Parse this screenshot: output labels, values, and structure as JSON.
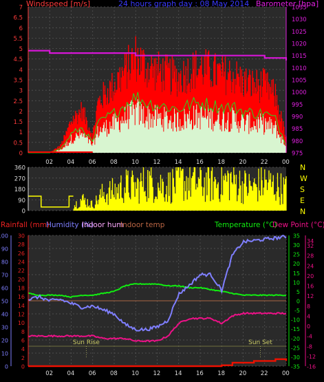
{
  "title": "24 hours graph day : 08 May 2014",
  "colors": {
    "background": "#000000",
    "grid": "#5a5a5a",
    "wind_avg": "#ff2a1a",
    "wind_gust": "#ff0000",
    "wind_avg_fill": "#d8f5d0",
    "wind_line": "#22dd22",
    "barometer": "#d815d8",
    "direction": "#ffff00",
    "humidity": "#7f7fff",
    "temperature": "#11ee11",
    "dewpoint": "#ee1188",
    "rain": "#ee1100",
    "indoor_hum": "#ffaaff",
    "indoor_temp": "#aa6644",
    "sun": "#888844"
  },
  "chart_data": [
    {
      "type": "line",
      "panel": "wind-barometer",
      "title": "24 hours graph day : 08 May 2014",
      "left_axis": {
        "label": "Windspeed [m/s]",
        "ylim": [
          0,
          7
        ],
        "ticks": [
          "0",
          "0.5",
          "1",
          "1.5",
          "2",
          "2.5",
          "3",
          "3.5",
          "4",
          "4.5",
          "5",
          "5.5",
          "6",
          "6.5",
          "7"
        ]
      },
      "right_axis": {
        "label": "Barometer [hpa]",
        "ylim": [
          975,
          1035
        ],
        "ticks": [
          "975",
          "980",
          "985",
          "990",
          "995",
          "1000",
          "1005",
          "1010",
          "1015",
          "1020",
          "1025",
          "1030",
          "1035"
        ]
      },
      "x_ticks": [
        "02",
        "04",
        "06",
        "08",
        "10",
        "12",
        "14",
        "16",
        "18",
        "20",
        "22",
        "00"
      ],
      "series": [
        {
          "name": "Windspeed [m/s]",
          "x": [
            0,
            1,
            2,
            3,
            3.5,
            4,
            5,
            6,
            6.5,
            7,
            8,
            9,
            10,
            11,
            12,
            13,
            14,
            15,
            16,
            17,
            18,
            19,
            20,
            21,
            22,
            23,
            24
          ],
          "values": [
            0,
            0,
            0,
            0.2,
            0.5,
            0.9,
            1.2,
            0.5,
            1.4,
            1.6,
            1.9,
            2.3,
            2.7,
            2.4,
            2.3,
            2.2,
            2.1,
            2.3,
            2.4,
            2.3,
            2.2,
            2.2,
            2.0,
            1.9,
            1.9,
            1.6,
            0.4
          ]
        },
        {
          "name": "Barometer [hpa]",
          "x": [
            0,
            1,
            2,
            3,
            4,
            5,
            6,
            7,
            8,
            9,
            10,
            11,
            12,
            13,
            14,
            15,
            16,
            17,
            18,
            19,
            20,
            21,
            22,
            23,
            24
          ],
          "values": [
            1017,
            1017,
            1016,
            1016,
            1016,
            1016,
            1016,
            1016,
            1016,
            1016,
            1015,
            1015,
            1015,
            1015,
            1015,
            1015,
            1015,
            1015,
            1015,
            1015,
            1015,
            1015,
            1014,
            1014,
            1013
          ]
        }
      ]
    },
    {
      "type": "bar",
      "panel": "wind-direction",
      "ylim": [
        0,
        360
      ],
      "y_ticks": [
        "0",
        "90",
        "180",
        "270",
        "360"
      ],
      "compass": [
        "N",
        "W",
        "S",
        "E",
        "N"
      ],
      "values": [
        120,
        120,
        30,
        30,
        30,
        120,
        60,
        180,
        200,
        260,
        240,
        300,
        280,
        250,
        300,
        310,
        290,
        280,
        300,
        320,
        260,
        240,
        300,
        250,
        220
      ]
    },
    {
      "type": "line",
      "panel": "temperature-humidity",
      "legend": [
        "Rainfall (mm)",
        "Humidity (%)",
        "Indoor hum",
        "Indoor temp",
        "Temperature (°C)",
        "Dew Point (°C)"
      ],
      "humidity_axis": {
        "ylim": [
          0,
          100
        ],
        "ticks": [
          "0",
          "10",
          "20",
          "30",
          "40",
          "50",
          "60",
          "70",
          "80",
          "90",
          "100"
        ]
      },
      "rain_axis": {
        "ylim": [
          0,
          30
        ],
        "ticks": [
          "0",
          "2",
          "4",
          "6",
          "8",
          "10",
          "12",
          "14",
          "16",
          "18",
          "20",
          "22",
          "24",
          "26",
          "28",
          "30"
        ]
      },
      "temp_axis": {
        "ylim": [
          -35,
          35
        ],
        "ticks": [
          "-35",
          "-30",
          "-25",
          "-20",
          "-15",
          "-10",
          "-5",
          "0",
          "5",
          "10",
          "15",
          "20",
          "25",
          "30",
          "35"
        ]
      },
      "dew_axis": {
        "ylim": [
          -16,
          36
        ],
        "ticks": [
          "-16",
          "-12",
          "-8",
          "-4",
          "0",
          "4",
          "8",
          "12",
          "16",
          "20",
          "24",
          "28",
          "32",
          "34"
        ]
      },
      "x_ticks": [
        "02",
        "04",
        "06",
        "08",
        "10",
        "12",
        "14",
        "16",
        "18",
        "20",
        "22",
        "00"
      ],
      "sun_labels": {
        "rise": "Sun Rise",
        "set": "Sun Set"
      },
      "series": [
        {
          "name": "Humidity (%)",
          "x": [
            0,
            1,
            2,
            3,
            4,
            5,
            6,
            7,
            8,
            9,
            10,
            11,
            12,
            13,
            14,
            15,
            16,
            17,
            18,
            19,
            20,
            21,
            22,
            23,
            24
          ],
          "values": [
            51,
            53,
            50,
            51,
            48,
            45,
            46,
            43,
            40,
            32,
            28,
            28,
            30,
            35,
            55,
            62,
            70,
            70,
            58,
            85,
            95,
            96,
            97,
            98,
            99
          ]
        },
        {
          "name": "Temperature (°C)",
          "x": [
            0,
            1,
            2,
            3,
            4,
            5,
            6,
            7,
            8,
            9,
            10,
            11,
            12,
            13,
            14,
            15,
            16,
            17,
            18,
            19,
            20,
            21,
            22,
            23,
            24
          ],
          "values": [
            4,
            3,
            3,
            3,
            2,
            3,
            3,
            4,
            5,
            8,
            9,
            9,
            9,
            8,
            8,
            7,
            7,
            6,
            5,
            4,
            3,
            3,
            3,
            3,
            3
          ]
        },
        {
          "name": "Dew Point (°C)",
          "x": [
            0,
            1,
            2,
            3,
            4,
            5,
            6,
            7,
            8,
            9,
            10,
            11,
            12,
            13,
            14,
            15,
            16,
            17,
            18,
            19,
            20,
            21,
            22,
            23,
            24
          ],
          "values": [
            -4,
            -4,
            -4,
            -4,
            -4,
            -4,
            -4,
            -5,
            -5,
            -5,
            -6,
            -6,
            -6,
            -4,
            1,
            3,
            3,
            3,
            1,
            4,
            5,
            5,
            5,
            5,
            5
          ]
        },
        {
          "name": "Indoor temp",
          "x": [
            0,
            24
          ],
          "values": [
            0,
            0
          ]
        },
        {
          "name": "Rainfall (mm)",
          "x": [
            0,
            1,
            2,
            3,
            4,
            5,
            6,
            7,
            8,
            9,
            10,
            11,
            12,
            13,
            14,
            15,
            16,
            17,
            18,
            19,
            20,
            21,
            22,
            23,
            24
          ],
          "values": [
            0,
            0,
            0,
            0,
            0,
            0,
            0,
            0,
            0,
            0,
            0,
            0,
            0,
            0,
            0,
            0,
            0,
            0,
            0.2,
            0.8,
            0.8,
            1.2,
            1.2,
            1.6,
            1.2
          ]
        }
      ]
    }
  ]
}
